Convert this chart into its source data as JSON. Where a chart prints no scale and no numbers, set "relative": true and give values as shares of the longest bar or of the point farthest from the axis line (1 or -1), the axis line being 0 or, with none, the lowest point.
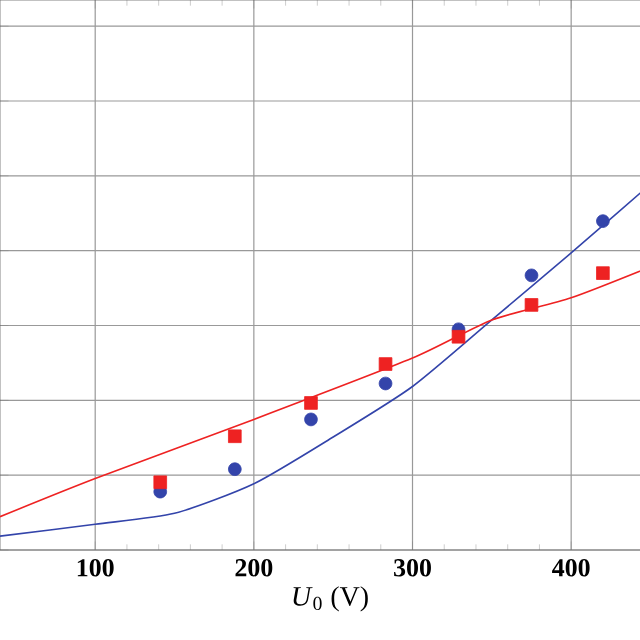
{
  "chart_data": {
    "type": "scatter",
    "xlabel": "*U*$_{0}$ (V)",
    "relative": true,
    "xlim": [
      40,
      456
    ],
    "xticks": [
      100,
      200,
      300,
      400
    ],
    "grid": true,
    "series": [
      {
        "marker": "circle",
        "color": "#3344aa",
        "x": [
          141,
          188,
          236,
          283,
          329,
          375,
          420
        ],
        "values": [
          0.156,
          0.216,
          0.349,
          0.445,
          0.59,
          0.734,
          0.879
        ]
      },
      {
        "marker": "square",
        "color": "#ee2222",
        "x": [
          141,
          188,
          236,
          283,
          329,
          375,
          420
        ],
        "values": [
          0.181,
          0.304,
          0.393,
          0.497,
          0.57,
          0.655,
          0.74
        ]
      },
      {
        "type": "line",
        "marker": "none",
        "color": "#3344aa",
        "x": [
          40,
          100,
          150,
          200,
          250,
          300,
          350,
          400,
          456
        ],
        "values": [
          0.037,
          0.069,
          0.098,
          0.177,
          0.302,
          0.437,
          0.615,
          0.794,
          1.0
        ]
      },
      {
        "type": "line",
        "marker": "none",
        "color": "#ee2222",
        "x": [
          40,
          100,
          200,
          300,
          350,
          400,
          456
        ],
        "values": [
          0.089,
          0.191,
          0.349,
          0.513,
          0.615,
          0.674,
          0.767
        ]
      }
    ]
  }
}
